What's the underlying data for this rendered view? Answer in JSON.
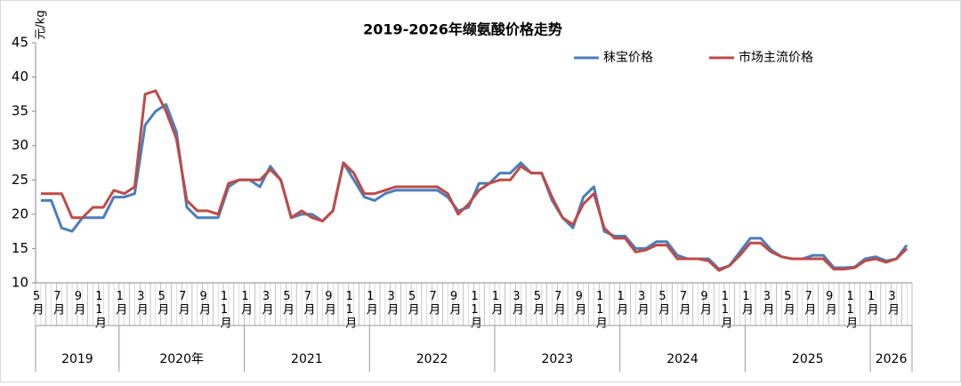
{
  "chart_data": {
    "type": "line",
    "title": "2019-2026年缬氨酸价格走势",
    "y_label": "元/kg",
    "categories": [
      "5月",
      null,
      "7月",
      null,
      "9月",
      null,
      "11月",
      null,
      "1月",
      null,
      "3月",
      null,
      "5月",
      null,
      "7月",
      null,
      "9月",
      null,
      "11月",
      null,
      "1月",
      null,
      "3月",
      null,
      "5月",
      null,
      "7月",
      null,
      "9月",
      null,
      "11月",
      null,
      "1月",
      null,
      "3月",
      null,
      "5月",
      null,
      "7月",
      null,
      "9月",
      null,
      "11月",
      null,
      "1月",
      null,
      "3月",
      null,
      "5月",
      null,
      "7月",
      null,
      "9月",
      null,
      "11月",
      null,
      "1月",
      null,
      "3月",
      null,
      "5月",
      null,
      "7月",
      null,
      "9月",
      null,
      "11月",
      null,
      "1月",
      null,
      "3月",
      null,
      "5月",
      null,
      "7月",
      null,
      "9月",
      null,
      "11月",
      null,
      "1月",
      null,
      "3月",
      null
    ],
    "year_labels": [
      "2019",
      "2020年",
      "2021",
      "2022",
      "2023",
      "2024",
      "2025",
      "2026"
    ],
    "series": [
      {
        "name": "秣宝价格",
        "color": "#4a7ebb",
        "values": [
          22,
          22,
          18,
          17.5,
          19.5,
          19.5,
          19.5,
          22.5,
          22.5,
          23,
          33,
          35,
          36,
          32,
          21,
          19.5,
          19.5,
          19.5,
          24,
          25,
          25,
          24,
          27,
          25,
          19.5,
          20,
          20,
          19,
          20.5,
          27.5,
          25,
          22.5,
          22,
          23,
          23.5,
          23.5,
          23.5,
          23.5,
          23.5,
          22.5,
          20.5,
          21,
          24.5,
          24.5,
          26,
          26,
          27.5,
          26,
          26,
          22,
          19.5,
          18,
          22.5,
          24,
          17.5,
          16.8,
          16.8,
          15,
          15,
          16,
          16,
          14,
          13.5,
          13.5,
          13.5,
          12,
          12.5,
          14.5,
          16.5,
          16.5,
          14.8,
          13.8,
          13.5,
          13.5,
          14,
          14,
          12.2,
          12.2,
          12.3,
          13.5,
          13.8,
          13.2,
          13.5,
          15.5
        ]
      },
      {
        "name": "市场主流价格",
        "color": "#be4b48",
        "values": [
          23,
          23,
          23,
          19.5,
          19.5,
          21,
          21,
          23.5,
          23,
          24,
          37.5,
          38,
          35,
          31,
          22,
          20.5,
          20.5,
          20,
          24.5,
          25,
          25,
          25,
          26.5,
          25,
          19.5,
          20.5,
          19.5,
          19,
          20.5,
          27.5,
          26,
          23,
          23,
          23.5,
          24,
          24,
          24,
          24,
          24,
          23,
          20,
          21.5,
          23.5,
          24.5,
          25,
          25,
          27,
          26,
          26,
          22.5,
          19.5,
          18.5,
          21.5,
          23,
          18,
          16.5,
          16.5,
          14.5,
          14.8,
          15.5,
          15.5,
          13.5,
          13.5,
          13.5,
          13.2,
          11.8,
          12.5,
          14,
          15.8,
          15.8,
          14.5,
          13.8,
          13.5,
          13.5,
          13.5,
          13.5,
          12,
          12,
          12.2,
          13.2,
          13.5,
          13,
          13.5,
          15
        ]
      }
    ],
    "ylim": [
      10,
      45
    ],
    "yticks": [
      10,
      15,
      20,
      25,
      30,
      35,
      40,
      45
    ],
    "legend": "top-right"
  }
}
